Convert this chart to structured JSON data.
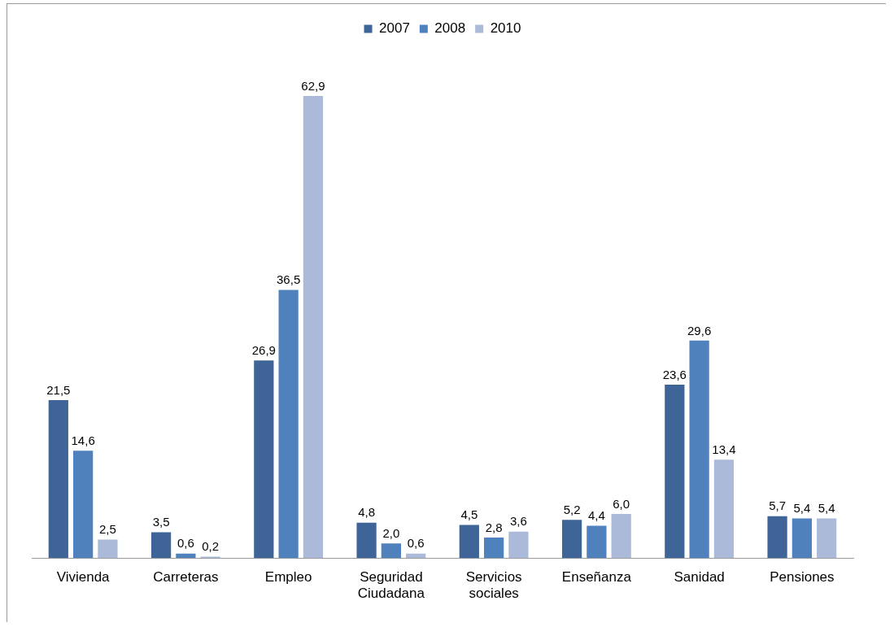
{
  "chart_data": {
    "type": "bar",
    "categories": [
      "Vivienda",
      "Carreteras",
      "Empleo",
      "Seguridad Ciudadana",
      "Servicios sociales",
      "Enseñanza",
      "Sanidad",
      "Pensiones"
    ],
    "series": [
      {
        "name": "2007",
        "color": "#3f6598",
        "values": [
          21.5,
          3.5,
          26.9,
          4.8,
          4.5,
          5.2,
          23.6,
          5.7
        ],
        "value_labels": [
          "21,5",
          "3,5",
          "26,9",
          "4,8",
          "4,5",
          "5,2",
          "23,6",
          "5,7"
        ]
      },
      {
        "name": "2008",
        "color": "#4f81bd",
        "values": [
          14.6,
          0.6,
          36.5,
          2.0,
          2.8,
          4.4,
          29.6,
          5.4
        ],
        "value_labels": [
          "14,6",
          "0,6",
          "36,5",
          "2,0",
          "2,8",
          "4,4",
          "29,6",
          "5,4"
        ]
      },
      {
        "name": "2010",
        "color": "#aabad8",
        "values": [
          2.5,
          0.2,
          62.9,
          0.6,
          3.6,
          6.0,
          13.4,
          5.4
        ],
        "value_labels": [
          "2,5",
          "0,2",
          "62,9",
          "0,6",
          "3,6",
          "6,0",
          "13,4",
          "5,4"
        ]
      }
    ],
    "legend": "top",
    "grid": false
  }
}
